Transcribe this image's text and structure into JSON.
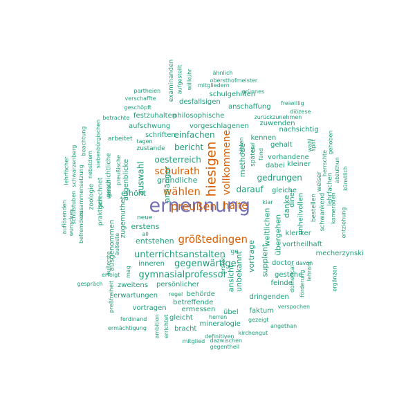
{
  "colors": {
    "top": "#7570b3",
    "high": "#d95f02",
    "base": "#1b9e77"
  },
  "words": [
    {
      "t": "ernennung",
      "c": "top"
    },
    {
      "t": "hiesigen",
      "c": "high"
    },
    {
      "t": "preußen",
      "c": "high"
    },
    {
      "t": "größtedingen",
      "c": "high"
    },
    {
      "t": "wählen",
      "c": "high"
    },
    {
      "t": "schulrath",
      "c": "high"
    },
    {
      "t": "vollkommene",
      "c": "high"
    },
    {
      "t": "halte",
      "c": "high"
    },
    {
      "t": "unterrichtsanstalten",
      "c": "base"
    },
    {
      "t": "gymnasialprofessor",
      "c": "base"
    },
    {
      "t": "gegenwärtige",
      "c": "base"
    },
    {
      "t": "darauf",
      "c": "base"
    },
    {
      "t": "gedrungen",
      "c": "base"
    },
    {
      "t": "oesterreich",
      "c": "base"
    },
    {
      "t": "gründliche",
      "c": "base"
    },
    {
      "t": "methode",
      "c": "base"
    },
    {
      "t": "einfachen",
      "c": "base"
    },
    {
      "t": "bericht",
      "c": "base"
    },
    {
      "t": "auswahl",
      "c": "base"
    },
    {
      "t": "anhänger",
      "c": "base"
    },
    {
      "t": "erhöht",
      "c": "base"
    },
    {
      "t": "erstens",
      "c": "base"
    },
    {
      "t": "entstehen",
      "c": "base"
    },
    {
      "t": "weltlichen",
      "c": "base"
    },
    {
      "t": "übergehen",
      "c": "base"
    },
    {
      "t": "danke",
      "c": "base"
    },
    {
      "t": "vortrage",
      "c": "base"
    },
    {
      "t": "supplent",
      "c": "base"
    },
    {
      "t": "unbekannt",
      "c": "base"
    },
    {
      "t": "ansicht",
      "c": "base"
    },
    {
      "t": "schulgehilfen",
      "c": "base"
    },
    {
      "t": "desfallsigen",
      "c": "base"
    },
    {
      "t": "anschaffung",
      "c": "base"
    },
    {
      "t": "philosophische",
      "c": "base"
    },
    {
      "t": "vorgeschlagenen",
      "c": "base"
    },
    {
      "t": "festzuhalten",
      "c": "base"
    },
    {
      "t": "aufschwung",
      "c": "base"
    },
    {
      "t": "schriften",
      "c": "base"
    },
    {
      "t": "zuwenden",
      "c": "base"
    },
    {
      "t": "nachsichtig",
      "c": "base"
    },
    {
      "t": "kennen",
      "c": "base"
    },
    {
      "t": "gehalt",
      "c": "base"
    },
    {
      "t": "vorhandene",
      "c": "base"
    },
    {
      "t": "dabei",
      "c": "base"
    },
    {
      "t": "kleiner",
      "c": "base"
    },
    {
      "t": "gleiche",
      "c": "base"
    },
    {
      "t": "diner",
      "c": "base"
    },
    {
      "t": "unheilvollen",
      "c": "base"
    },
    {
      "t": "kleriker",
      "c": "base"
    },
    {
      "t": "vortheilhaft",
      "c": "base"
    },
    {
      "t": "mecherzynski",
      "c": "base"
    },
    {
      "t": "doctor",
      "c": "base"
    },
    {
      "t": "gestehe",
      "c": "base"
    },
    {
      "t": "feinde",
      "c": "base"
    },
    {
      "t": "dringenden",
      "c": "base"
    },
    {
      "t": "faktum",
      "c": "base"
    },
    {
      "t": "übel",
      "c": "base"
    },
    {
      "t": "ermessen",
      "c": "base"
    },
    {
      "t": "betreffende",
      "c": "base"
    },
    {
      "t": "behörde",
      "c": "base"
    },
    {
      "t": "gleicht",
      "c": "base"
    },
    {
      "t": "bracht",
      "c": "base"
    },
    {
      "t": "mineralogie",
      "c": "base"
    },
    {
      "t": "vortragen",
      "c": "base"
    },
    {
      "t": "erwartungen",
      "c": "base"
    },
    {
      "t": "zweitens",
      "c": "base"
    },
    {
      "t": "persönlicher",
      "c": "base"
    },
    {
      "t": "inneren",
      "c": "base"
    },
    {
      "t": "ausgenommen",
      "c": "base"
    },
    {
      "t": "zugemuthet",
      "c": "base"
    },
    {
      "t": "augenblicke",
      "c": "base"
    },
    {
      "t": "praktisch",
      "c": "base"
    },
    {
      "t": "gerechnet",
      "c": "base"
    },
    {
      "t": "zoologie",
      "c": "base"
    },
    {
      "t": "geschichtliche",
      "c": "base"
    },
    {
      "t": "arbeitet",
      "c": "base"
    },
    {
      "t": "zustande",
      "c": "base"
    },
    {
      "t": "neue",
      "c": "base"
    },
    {
      "t": "examinanden",
      "c": "base"
    },
    {
      "t": "schwankend",
      "c": "base"
    },
    {
      "t": "bestellen",
      "c": "base"
    },
    {
      "t": "lehrfachen",
      "c": "base"
    },
    {
      "t": "weiser",
      "c": "base"
    },
    {
      "t": "ge",
      "c": "base"
    },
    {
      "t": "später",
      "c": "base"
    },
    {
      "t": "freiwillig",
      "c": "base"
    },
    {
      "t": "diözese",
      "c": "base"
    },
    {
      "t": "zurückzunehmen",
      "c": "base"
    },
    {
      "t": "grünnes",
      "c": "base"
    },
    {
      "t": "obersthofmeister",
      "c": "base"
    },
    {
      "t": "mitgliedern",
      "c": "base"
    },
    {
      "t": "ähnlich",
      "c": "base"
    },
    {
      "t": "aufgestellt",
      "c": "base"
    },
    {
      "t": "willkühr",
      "c": "base"
    },
    {
      "t": "partheien",
      "c": "base"
    },
    {
      "t": "verschaffte",
      "c": "base"
    },
    {
      "t": "geschöpft",
      "c": "base"
    },
    {
      "t": "betrachte",
      "c": "base"
    },
    {
      "t": "tagen",
      "c": "base"
    },
    {
      "t": "siebenbürgischen",
      "c": "base"
    },
    {
      "t": "beachtung",
      "c": "base"
    },
    {
      "t": "nebstdem",
      "c": "base"
    },
    {
      "t": "schwarzenberg",
      "c": "base"
    },
    {
      "t": "lehrfächer",
      "c": "base"
    },
    {
      "t": "zusammensetzung",
      "c": "base"
    },
    {
      "t": "schulstuben",
      "c": "base"
    },
    {
      "t": "auflösenden",
      "c": "base"
    },
    {
      "t": "befremdens",
      "c": "base"
    },
    {
      "t": "wunsches",
      "c": "base"
    },
    {
      "t": "preußische",
      "c": "base"
    },
    {
      "t": "worauf",
      "c": "base"
    },
    {
      "t": "all",
      "c": "base"
    },
    {
      "t": "äußeste",
      "c": "base"
    },
    {
      "t": "äußerste",
      "c": "base"
    },
    {
      "t": "mag",
      "c": "base"
    },
    {
      "t": "erfolgt",
      "c": "base"
    },
    {
      "t": "gespräch",
      "c": "base"
    },
    {
      "t": "preßfreiheit",
      "c": "base"
    },
    {
      "t": "regel",
      "c": "base"
    },
    {
      "t": "ferdinand",
      "c": "base"
    },
    {
      "t": "ermächtigung",
      "c": "base"
    },
    {
      "t": "ambition",
      "c": "base"
    },
    {
      "t": "errichtet",
      "c": "base"
    },
    {
      "t": "herren",
      "c": "base"
    },
    {
      "t": "gezeigt",
      "c": "base"
    },
    {
      "t": "angethan",
      "c": "base"
    },
    {
      "t": "kirchengut",
      "c": "base"
    },
    {
      "t": "definitiven",
      "c": "base"
    },
    {
      "t": "mitglied",
      "c": "base"
    },
    {
      "t": "dazwischen",
      "c": "base"
    },
    {
      "t": "gegentheil",
      "c": "base"
    },
    {
      "t": "verspochen",
      "c": "base"
    },
    {
      "t": "domerical",
      "c": "base"
    },
    {
      "t": "förderung",
      "c": "base"
    },
    {
      "t": "lehrant",
      "c": "base"
    },
    {
      "t": "ergänzen",
      "c": "base"
    },
    {
      "t": "davon",
      "c": "base"
    },
    {
      "t": "kameraden",
      "c": "base"
    },
    {
      "t": "entziehung",
      "c": "base"
    },
    {
      "t": "künstlich",
      "c": "base"
    },
    {
      "t": "abzuthun",
      "c": "base"
    },
    {
      "t": "herrschte",
      "c": "base"
    },
    {
      "t": "gehoben",
      "c": "base"
    },
    {
      "t": "spät",
      "c": "base"
    },
    {
      "t": "wahl",
      "c": "base"
    },
    {
      "t": "klar",
      "c": "base"
    },
    {
      "t": "ersten",
      "c": "base"
    },
    {
      "t": "bieten",
      "c": "base"
    },
    {
      "t": "tief",
      "c": "base"
    },
    {
      "t": "fand",
      "c": "base"
    }
  ]
}
